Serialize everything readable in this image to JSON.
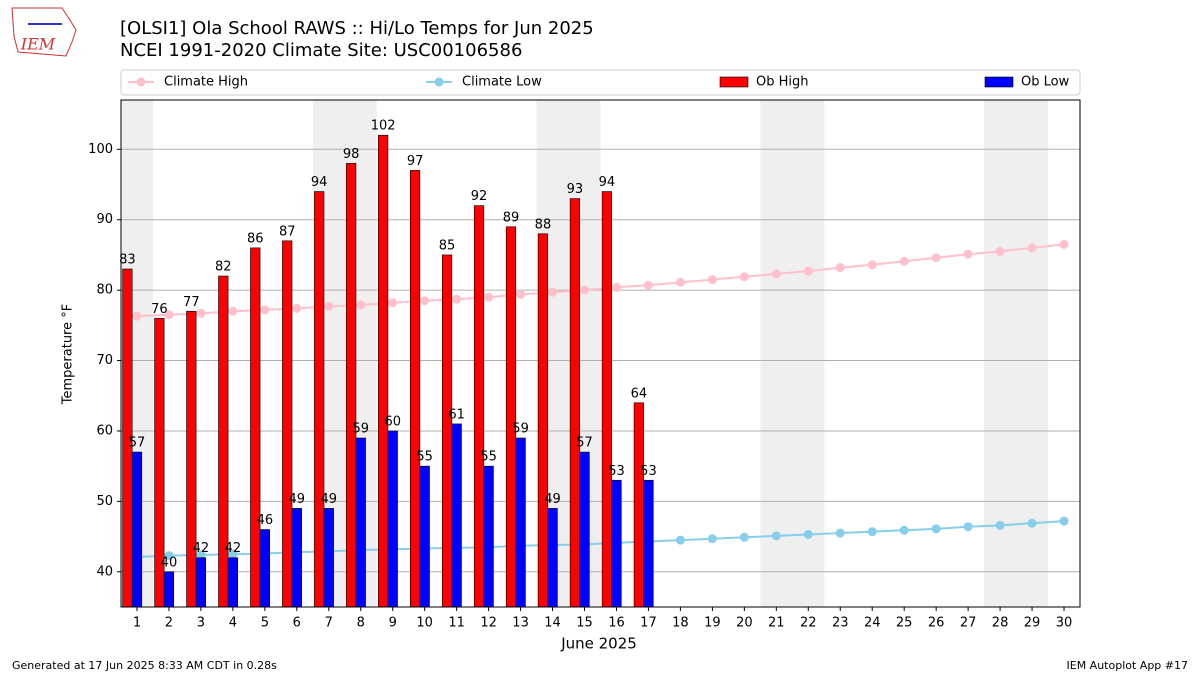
{
  "logo": "IEM",
  "footer": {
    "left": "Generated at 17 Jun 2025 8:33 AM CDT in 0.28s",
    "right": "IEM Autoplot App #17"
  },
  "chart_data": {
    "type": "bar",
    "title": "[OLSI1] Ola School RAWS :: Hi/Lo Temps for Jun 2025",
    "subtitle": "NCEI 1991-2020 Climate Site: USC00106586",
    "x_label": "June 2025",
    "y_label": "Temperature °F",
    "categories": [
      "1",
      "2",
      "3",
      "4",
      "5",
      "6",
      "7",
      "8",
      "9",
      "10",
      "11",
      "12",
      "13",
      "14",
      "15",
      "16",
      "17",
      "18",
      "19",
      "20",
      "21",
      "22",
      "23",
      "24",
      "25",
      "26",
      "27",
      "28",
      "29",
      "30"
    ],
    "ylim": [
      35,
      107
    ],
    "yticks": [
      40,
      50,
      60,
      70,
      80,
      90,
      100
    ],
    "grid": true,
    "legend": "top",
    "series": [
      {
        "name": "Climate High",
        "type": "line",
        "color": "#ffc0cb",
        "values": [
          76.3,
          76.5,
          76.7,
          77.0,
          77.2,
          77.4,
          77.7,
          77.9,
          78.2,
          78.5,
          78.7,
          79.0,
          79.4,
          79.7,
          80.0,
          80.4,
          80.7,
          81.1,
          81.5,
          81.9,
          82.3,
          82.7,
          83.2,
          83.6,
          84.1,
          84.6,
          85.1,
          85.5,
          86.0,
          86.5
        ]
      },
      {
        "name": "Climate Low",
        "type": "line",
        "color": "#87ceeb",
        "values": [
          42.1,
          42.3,
          42.4,
          42.5,
          42.6,
          42.8,
          42.9,
          43.1,
          43.2,
          43.3,
          43.4,
          43.5,
          43.7,
          43.8,
          43.9,
          44.1,
          44.3,
          44.5,
          44.7,
          44.9,
          45.1,
          45.3,
          45.5,
          45.7,
          45.9,
          46.1,
          46.4,
          46.6,
          46.9,
          47.2
        ]
      },
      {
        "name": "Ob High",
        "type": "bar",
        "color": "#ff0000",
        "values": [
          83,
          76,
          77,
          82,
          86,
          87,
          94,
          98,
          102,
          97,
          85,
          92,
          89,
          88,
          93,
          94,
          64,
          null,
          null,
          null,
          null,
          null,
          null,
          null,
          null,
          null,
          null,
          null,
          null,
          null
        ]
      },
      {
        "name": "Ob Low",
        "type": "bar",
        "color": "#0000ff",
        "values": [
          57,
          40,
          42,
          42,
          46,
          49,
          49,
          59,
          60,
          55,
          61,
          55,
          59,
          49,
          57,
          53,
          53,
          null,
          null,
          null,
          null,
          null,
          null,
          null,
          null,
          null,
          null,
          null,
          null,
          null
        ]
      }
    ]
  }
}
